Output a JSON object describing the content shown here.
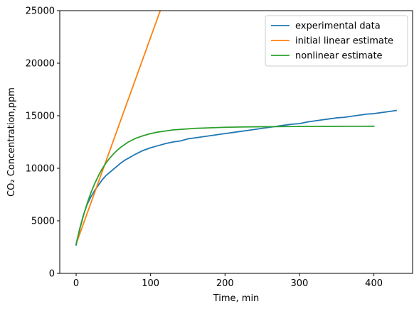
{
  "chart_data": {
    "type": "line",
    "title": "",
    "xlabel": "Time, min",
    "ylabel": "CO₂ Concentration,ppm",
    "xlim": [
      -22,
      452
    ],
    "ylim": [
      0,
      25000
    ],
    "xticks": [
      0,
      100,
      200,
      300,
      400
    ],
    "yticks": [
      0,
      5000,
      10000,
      15000,
      20000,
      25000
    ],
    "grid": false,
    "legend_position": "top-right",
    "series": [
      {
        "name": "experimental data",
        "color": "#1f77b4",
        "x": [
          0,
          5,
          10,
          15,
          20,
          25,
          30,
          35,
          40,
          45,
          50,
          55,
          60,
          65,
          70,
          75,
          80,
          90,
          100,
          110,
          120,
          130,
          140,
          150,
          160,
          170,
          180,
          190,
          200,
          210,
          220,
          230,
          240,
          250,
          260,
          270,
          280,
          290,
          300,
          310,
          320,
          330,
          340,
          350,
          360,
          370,
          380,
          390,
          400,
          410,
          420,
          430
        ],
        "y": [
          2700,
          4300,
          5600,
          6600,
          7300,
          7900,
          8400,
          8900,
          9300,
          9600,
          9900,
          10200,
          10500,
          10750,
          10950,
          11150,
          11350,
          11700,
          11950,
          12150,
          12350,
          12500,
          12600,
          12800,
          12900,
          13000,
          13100,
          13200,
          13300,
          13400,
          13500,
          13600,
          13700,
          13800,
          13900,
          14000,
          14100,
          14200,
          14250,
          14400,
          14500,
          14600,
          14700,
          14800,
          14850,
          14950,
          15050,
          15150,
          15200,
          15300,
          15400,
          15500
        ]
      },
      {
        "name": "initial linear estimate",
        "color": "#ff7f0e",
        "x": [
          0,
          113
        ],
        "y": [
          2800,
          25000
        ]
      },
      {
        "name": "nonlinear estimate",
        "color": "#2ca02c",
        "x": [
          0,
          5,
          10,
          15,
          20,
          25,
          30,
          35,
          40,
          45,
          50,
          55,
          60,
          70,
          80,
          90,
          100,
          110,
          120,
          130,
          140,
          150,
          160,
          170,
          180,
          200,
          220,
          240,
          260,
          280,
          300,
          320,
          340,
          360,
          380,
          400
        ],
        "y": [
          2800,
          4250,
          5550,
          6700,
          7700,
          8550,
          9300,
          9950,
          10500,
          10950,
          11350,
          11700,
          12000,
          12500,
          12850,
          13100,
          13300,
          13450,
          13550,
          13650,
          13700,
          13750,
          13800,
          13820,
          13850,
          13900,
          13930,
          13950,
          13960,
          13970,
          13980,
          13985,
          13990,
          13993,
          13996,
          14000
        ]
      }
    ]
  }
}
